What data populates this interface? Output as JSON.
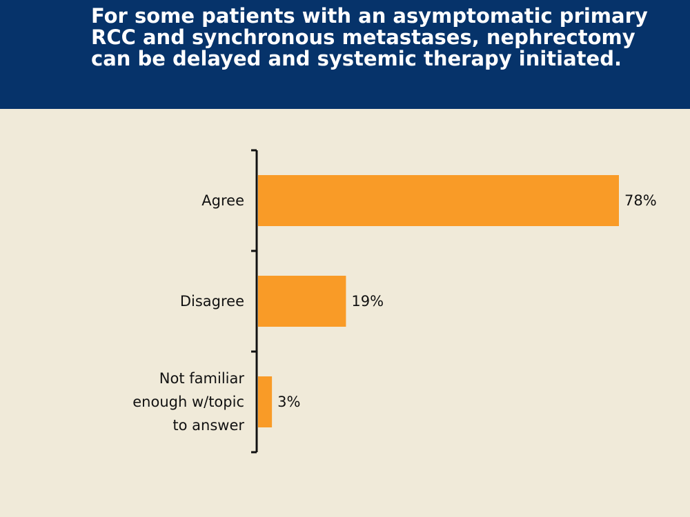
{
  "header": {
    "title": "For some patients with an asymptomatic primary RCC and synchronous metastases, nephrectomy can be delayed and systemic therapy initiated."
  },
  "colors": {
    "header_bg": "#06336a",
    "background": "#f0ead9",
    "bar": "#f99b27",
    "axis": "#111111"
  },
  "chart_data": {
    "type": "bar",
    "orientation": "horizontal",
    "categories": [
      [
        "Agree"
      ],
      [
        "Disagree"
      ],
      [
        "Not familiar",
        "enough w/topic",
        "to answer"
      ]
    ],
    "values": [
      78,
      19,
      3
    ],
    "value_labels": [
      "78%",
      "19%",
      "3%"
    ],
    "xlim": [
      0,
      100
    ],
    "grid": false,
    "legend": "none"
  }
}
